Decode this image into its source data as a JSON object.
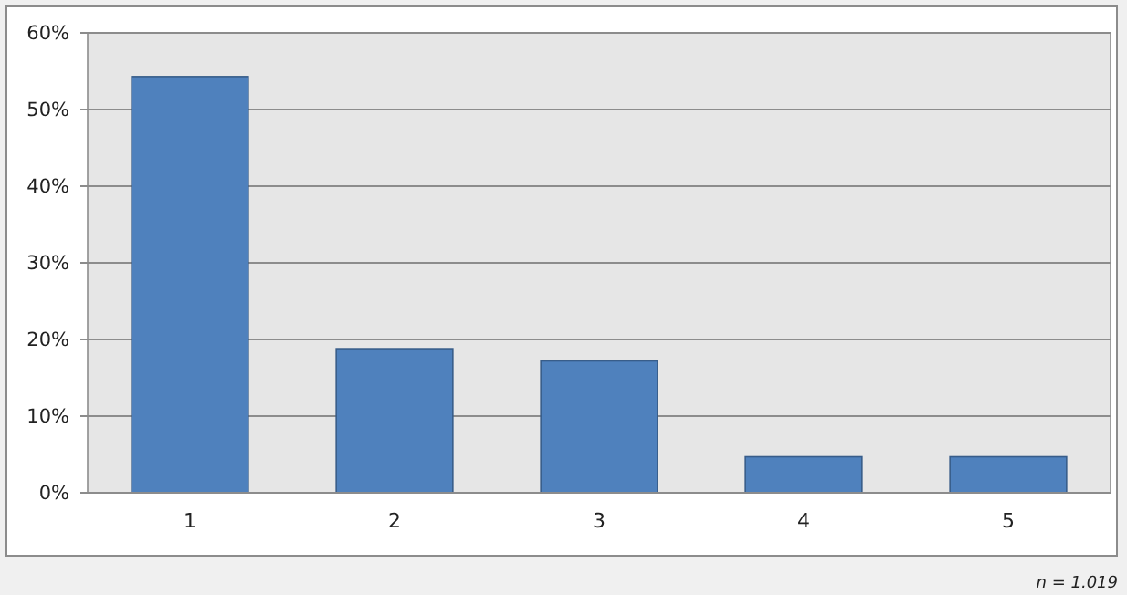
{
  "chart_data": {
    "type": "bar",
    "categories": [
      "1",
      "2",
      "3",
      "4",
      "5"
    ],
    "values": [
      54.3,
      18.8,
      17.2,
      4.7,
      4.7
    ],
    "color": "#4f81bd",
    "ylim": [
      0,
      60
    ],
    "yticks": [
      {
        "value": 0,
        "label": "0%"
      },
      {
        "value": 10,
        "label": "10%"
      },
      {
        "value": 20,
        "label": "20%"
      },
      {
        "value": 30,
        "label": "30%"
      },
      {
        "value": 40,
        "label": "40%"
      },
      {
        "value": 50,
        "label": "50%"
      },
      {
        "value": 60,
        "label": "60%"
      }
    ],
    "grid": "y",
    "annotations": [
      "n = 1.019"
    ]
  }
}
